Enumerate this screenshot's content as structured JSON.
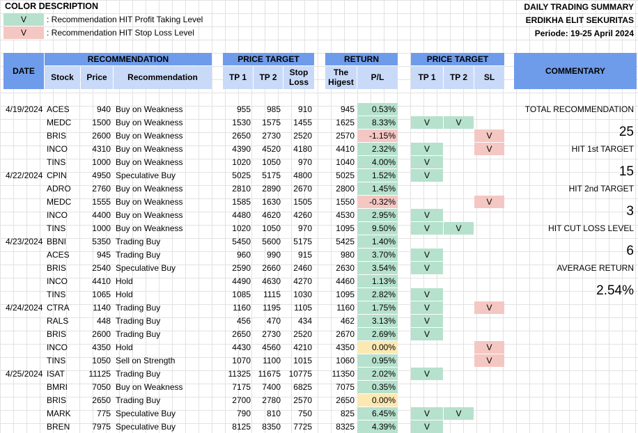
{
  "color_description": {
    "title": "COLOR DESCRIPTION",
    "items": [
      {
        "swatch": "V",
        "text": ": Recommendation HIT Profit Taking Level",
        "color": "#b6e1cd"
      },
      {
        "swatch": "V",
        "text": ": Recommendation HIT Stop Loss Level",
        "color": "#f4c7c3"
      }
    ]
  },
  "summary": {
    "title": "DAILY TRADING SUMMARY",
    "company": "ERDIKHA ELIT SEKURITAS",
    "period": "Periode:  19-25 April 2024"
  },
  "headers": {
    "date": "DATE",
    "recommendation_group": "RECOMMENDATION",
    "stock": "Stock",
    "price": "Price",
    "recommendation": "Recommendation",
    "price_target_group": "PRICE TARGET",
    "tp1": "TP 1",
    "tp2": "TP 2",
    "stop_loss": "Stop Loss",
    "return_group": "RETURN",
    "highest": "The Higest",
    "pl": "P/L",
    "hit_group": "PRICE TARGET",
    "hit_tp1": "TP 1",
    "hit_tp2": "TP 2",
    "hit_sl": "SL",
    "commentary": "COMMENTARY"
  },
  "colors": {
    "header_blue": "#6f9cea",
    "subheader_blue": "#c9daf8",
    "profit_green": "#b6e1cd",
    "loss_red": "#f4c7c3",
    "neutral_yellow": "#fce8b2"
  },
  "rows": [
    {
      "date": "4/19/2024",
      "stock": "ACES",
      "price": "940",
      "rec": "Buy on Weakness",
      "tp1": "955",
      "tp2": "985",
      "sl": "910",
      "high": "945",
      "pl": "0.53%",
      "plc": "g",
      "h1": "",
      "h2": "",
      "hs": ""
    },
    {
      "date": "",
      "stock": "MEDC",
      "price": "1500",
      "rec": "Buy on Weakness",
      "tp1": "1530",
      "tp2": "1575",
      "sl": "1455",
      "high": "1625",
      "pl": "8.33%",
      "plc": "g",
      "h1": "V",
      "h2": "V",
      "hs": ""
    },
    {
      "date": "",
      "stock": "BRIS",
      "price": "2600",
      "rec": "Buy on Weakness",
      "tp1": "2650",
      "tp2": "2730",
      "sl": "2520",
      "high": "2570",
      "pl": "-1.15%",
      "plc": "r",
      "h1": "",
      "h2": "",
      "hs": "V"
    },
    {
      "date": "",
      "stock": "INCO",
      "price": "4310",
      "rec": "Buy on Weakness",
      "tp1": "4390",
      "tp2": "4520",
      "sl": "4180",
      "high": "4410",
      "pl": "2.32%",
      "plc": "g",
      "h1": "V",
      "h2": "",
      "hs": "V"
    },
    {
      "date": "",
      "stock": "TINS",
      "price": "1000",
      "rec": "Buy on Weakness",
      "tp1": "1020",
      "tp2": "1050",
      "sl": "970",
      "high": "1040",
      "pl": "4.00%",
      "plc": "g",
      "h1": "V",
      "h2": "",
      "hs": ""
    },
    {
      "date": "4/22/2024",
      "stock": "CPIN",
      "price": "4950",
      "rec": "Speculative Buy",
      "tp1": "5025",
      "tp2": "5175",
      "sl": "4800",
      "high": "5025",
      "pl": "1.52%",
      "plc": "g",
      "h1": "V",
      "h2": "",
      "hs": ""
    },
    {
      "date": "",
      "stock": "ADRO",
      "price": "2760",
      "rec": "Buy on Weakness",
      "tp1": "2810",
      "tp2": "2890",
      "sl": "2670",
      "high": "2800",
      "pl": "1.45%",
      "plc": "g",
      "h1": "",
      "h2": "",
      "hs": ""
    },
    {
      "date": "",
      "stock": "MEDC",
      "price": "1555",
      "rec": "Buy on Weakness",
      "tp1": "1585",
      "tp2": "1630",
      "sl": "1505",
      "high": "1550",
      "pl": "-0.32%",
      "plc": "r",
      "h1": "",
      "h2": "",
      "hs": "V"
    },
    {
      "date": "",
      "stock": "INCO",
      "price": "4400",
      "rec": "Buy on Weakness",
      "tp1": "4480",
      "tp2": "4620",
      "sl": "4260",
      "high": "4530",
      "pl": "2.95%",
      "plc": "g",
      "h1": "V",
      "h2": "",
      "hs": ""
    },
    {
      "date": "",
      "stock": "TINS",
      "price": "1000",
      "rec": "Buy on Weakness",
      "tp1": "1020",
      "tp2": "1050",
      "sl": "970",
      "high": "1095",
      "pl": "9.50%",
      "plc": "g",
      "h1": "V",
      "h2": "V",
      "hs": ""
    },
    {
      "date": "4/23/2024",
      "stock": "BBNI",
      "price": "5350",
      "rec": "Trading Buy",
      "tp1": "5450",
      "tp2": "5600",
      "sl": "5175",
      "high": "5425",
      "pl": "1.40%",
      "plc": "g",
      "h1": "",
      "h2": "",
      "hs": ""
    },
    {
      "date": "",
      "stock": "ACES",
      "price": "945",
      "rec": "Trading Buy",
      "tp1": "960",
      "tp2": "990",
      "sl": "915",
      "high": "980",
      "pl": "3.70%",
      "plc": "g",
      "h1": "V",
      "h2": "",
      "hs": ""
    },
    {
      "date": "",
      "stock": "BRIS",
      "price": "2540",
      "rec": "Speculative Buy",
      "tp1": "2590",
      "tp2": "2660",
      "sl": "2460",
      "high": "2630",
      "pl": "3.54%",
      "plc": "g",
      "h1": "V",
      "h2": "",
      "hs": ""
    },
    {
      "date": "",
      "stock": "INCO",
      "price": "4410",
      "rec": "Hold",
      "tp1": "4490",
      "tp2": "4630",
      "sl": "4270",
      "high": "4460",
      "pl": "1.13%",
      "plc": "g",
      "h1": "",
      "h2": "",
      "hs": ""
    },
    {
      "date": "",
      "stock": "TINS",
      "price": "1065",
      "rec": "Hold",
      "tp1": "1085",
      "tp2": "1115",
      "sl": "1030",
      "high": "1095",
      "pl": "2.82%",
      "plc": "g",
      "h1": "V",
      "h2": "",
      "hs": ""
    },
    {
      "date": "4/24/2024",
      "stock": "CTRA",
      "price": "1140",
      "rec": "Trading Buy",
      "tp1": "1160",
      "tp2": "1195",
      "sl": "1105",
      "high": "1160",
      "pl": "1.75%",
      "plc": "g",
      "h1": "V",
      "h2": "",
      "hs": "V"
    },
    {
      "date": "",
      "stock": "RALS",
      "price": "448",
      "rec": "Trading Buy",
      "tp1": "456",
      "tp2": "470",
      "sl": "434",
      "high": "462",
      "pl": "3.13%",
      "plc": "g",
      "h1": "V",
      "h2": "",
      "hs": ""
    },
    {
      "date": "",
      "stock": "BRIS",
      "price": "2600",
      "rec": "Trading Buy",
      "tp1": "2650",
      "tp2": "2730",
      "sl": "2520",
      "high": "2670",
      "pl": "2.69%",
      "plc": "g",
      "h1": "V",
      "h2": "",
      "hs": ""
    },
    {
      "date": "",
      "stock": "INCO",
      "price": "4350",
      "rec": "Hold",
      "tp1": "4430",
      "tp2": "4560",
      "sl": "4210",
      "high": "4350",
      "pl": "0.00%",
      "plc": "y",
      "h1": "",
      "h2": "",
      "hs": "V"
    },
    {
      "date": "",
      "stock": "TINS",
      "price": "1050",
      "rec": "Sell on Strength",
      "tp1": "1070",
      "tp2": "1100",
      "sl": "1015",
      "high": "1060",
      "pl": "0.95%",
      "plc": "g",
      "h1": "",
      "h2": "",
      "hs": "V"
    },
    {
      "date": "4/25/2024",
      "stock": "ISAT",
      "price": "11125",
      "rec": "Trading Buy",
      "tp1": "11325",
      "tp2": "11675",
      "sl": "10775",
      "high": "11350",
      "pl": "2.02%",
      "plc": "g",
      "h1": "V",
      "h2": "",
      "hs": ""
    },
    {
      "date": "",
      "stock": "BMRI",
      "price": "7050",
      "rec": "Buy on Weakness",
      "tp1": "7175",
      "tp2": "7400",
      "sl": "6825",
      "high": "7075",
      "pl": "0.35%",
      "plc": "g",
      "h1": "",
      "h2": "",
      "hs": ""
    },
    {
      "date": "",
      "stock": "BRIS",
      "price": "2650",
      "rec": "Trading Buy",
      "tp1": "2700",
      "tp2": "2780",
      "sl": "2570",
      "high": "2650",
      "pl": "0.00%",
      "plc": "y",
      "h1": "",
      "h2": "",
      "hs": ""
    },
    {
      "date": "",
      "stock": "MARK",
      "price": "775",
      "rec": "Speculative Buy",
      "tp1": "790",
      "tp2": "810",
      "sl": "750",
      "high": "825",
      "pl": "6.45%",
      "plc": "g",
      "h1": "V",
      "h2": "V",
      "hs": ""
    },
    {
      "date": "",
      "stock": "BREN",
      "price": "7975",
      "rec": "Speculative Buy",
      "tp1": "8125",
      "tp2": "8350",
      "sl": "7725",
      "high": "8325",
      "pl": "4.39%",
      "plc": "g",
      "h1": "V",
      "h2": "",
      "hs": ""
    }
  ],
  "commentary": [
    {
      "label": "TOTAL RECOMMENDATION",
      "value": "25"
    },
    {
      "label": "HIT 1st TARGET",
      "value": "15"
    },
    {
      "label": "HIT 2nd TARGET",
      "value": "3"
    },
    {
      "label": "HIT CUT LOSS LEVEL",
      "value": "6"
    },
    {
      "label": "AVERAGE RETURN",
      "value": "2.54%"
    }
  ]
}
